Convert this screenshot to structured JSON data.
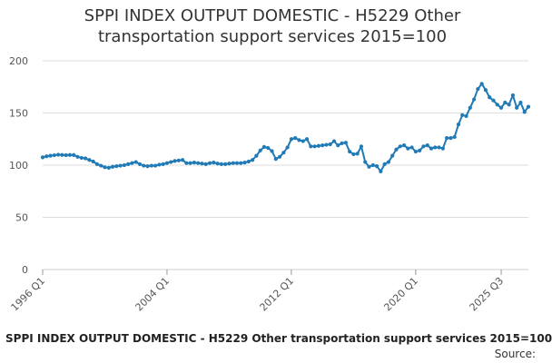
{
  "chart_data": {
    "type": "line",
    "title_lines": [
      "SPPI INDEX OUTPUT DOMESTIC - H5229 Other",
      "transportation support services 2015=100"
    ],
    "caption": "SPPI INDEX OUTPUT DOMESTIC - H5229 Other transportation support services 2015=100",
    "source_label": "Source:",
    "xlabel": "",
    "ylabel": "",
    "ylim": [
      0,
      200
    ],
    "yticks": [
      0,
      50,
      100,
      150,
      200
    ],
    "grid": true,
    "legend": "none",
    "x_start": "1996 Q1",
    "x_end": "2025 Q3",
    "xtick_labels": [
      {
        "label": "1996 Q1",
        "index": 0
      },
      {
        "label": "2004 Q1",
        "index": 32
      },
      {
        "label": "2012 Q1",
        "index": 64
      },
      {
        "label": "2020 Q1",
        "index": 96
      },
      {
        "label": "2025 Q3",
        "index": 118
      }
    ],
    "series": [
      {
        "color": "#1f7ab5",
        "values": [
          107.5,
          108.5,
          109,
          109.5,
          110,
          109.8,
          109.6,
          109.8,
          109.7,
          108,
          107,
          106.5,
          105,
          103.5,
          101,
          99.5,
          98,
          97.5,
          98.5,
          99,
          99.5,
          100,
          101,
          102,
          103,
          101,
          99.5,
          99,
          99.5,
          99.5,
          100.5,
          101,
          102,
          103,
          104,
          104.5,
          105,
          102,
          102,
          102.5,
          102,
          101.5,
          101,
          102,
          102.5,
          101.5,
          101,
          101,
          101.5,
          102,
          102,
          102,
          102.5,
          103.5,
          105,
          109,
          114,
          117.5,
          116.5,
          113.5,
          106,
          108,
          112,
          117,
          125,
          126,
          124,
          123,
          125,
          118,
          118,
          118.5,
          119,
          119.5,
          120,
          123,
          119,
          121,
          121.5,
          113,
          110.5,
          111,
          118,
          103,
          98.5,
          100,
          99,
          94,
          101,
          103,
          109,
          115,
          118,
          119,
          116,
          117,
          113,
          114,
          118,
          119,
          116,
          117,
          117,
          116,
          126,
          126,
          127,
          139,
          148,
          147,
          155,
          163,
          173,
          178,
          172,
          165,
          162,
          158,
          155,
          160,
          158,
          167,
          155,
          160,
          151,
          156
        ]
      }
    ]
  }
}
